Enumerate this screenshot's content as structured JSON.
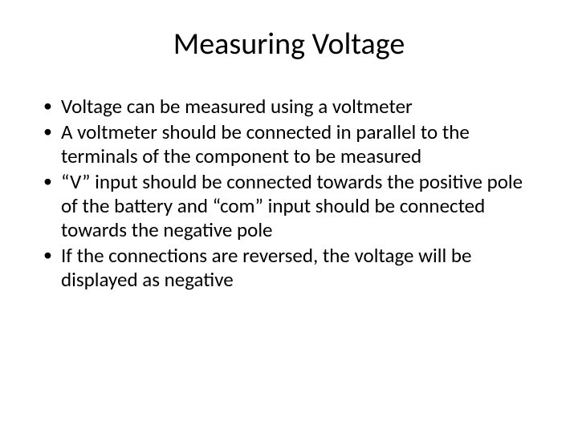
{
  "slide": {
    "title": "Measuring Voltage",
    "bullets": [
      "Voltage can be measured using a voltmeter",
      "A voltmeter should be connected in parallel to the terminals of the component to be measured",
      "“V” input should be connected towards the positive pole of the battery and “com” input should be connected towards the negative pole",
      "If the connections are reversed, the voltage will be displayed as negative"
    ]
  },
  "style": {
    "background_color": "#ffffff",
    "text_color": "#000000",
    "title_fontsize": 38,
    "body_fontsize": 25,
    "font_family": "Calibri"
  }
}
